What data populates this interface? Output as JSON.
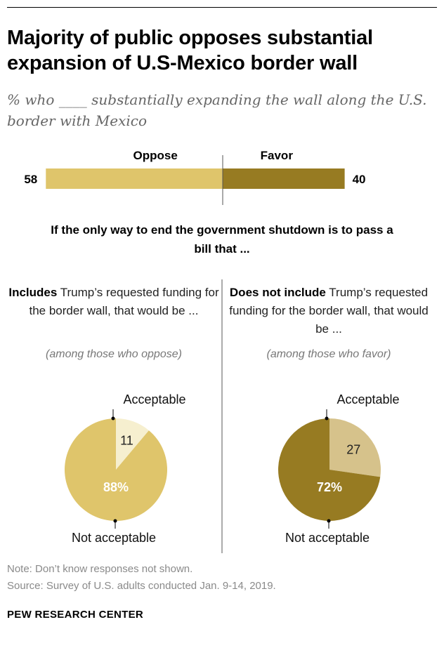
{
  "title": "Majority of public opposes substantial expansion of U.S-Mexico border wall",
  "subtitle": "% who ____ substantially expanding the wall along the U.S. border with Mexico",
  "question": "If the only way to end the government shutdown is to pass a bill that ...",
  "left_column": {
    "bold_lead": "Includes",
    "text": " Trump’s requested funding for the border wall, that would be ...",
    "among": "(among those who oppose)"
  },
  "right_column": {
    "bold_lead": "Does not include",
    "text": " Trump’s requested funding for the border wall, that would be ...",
    "among": "(among those who favor)"
  },
  "note": "Note: Don’t know responses not shown.",
  "source": "Source: Survey of U.S. adults conducted Jan. 9-14, 2019.",
  "branding": "PEW RESEARCH CENTER",
  "colors": {
    "oppose": "#dfc56b",
    "favor": "#977b22",
    "acceptable_left": "#f6efcf",
    "acceptable_right": "#d6c28b",
    "divider": "#555555"
  },
  "chart_data": [
    {
      "type": "bar",
      "orientation": "horizontal-diverging",
      "categories": [
        "Oppose",
        "Favor"
      ],
      "values": [
        58,
        40
      ],
      "labels": [
        "58",
        "40"
      ]
    },
    {
      "type": "pie",
      "categories": [
        "Acceptable",
        "Not acceptable"
      ],
      "values": [
        11,
        88
      ],
      "labels": [
        "11",
        "88%"
      ]
    },
    {
      "type": "pie",
      "categories": [
        "Acceptable",
        "Not acceptable"
      ],
      "values": [
        27,
        72
      ],
      "labels": [
        "27",
        "72%"
      ]
    }
  ]
}
